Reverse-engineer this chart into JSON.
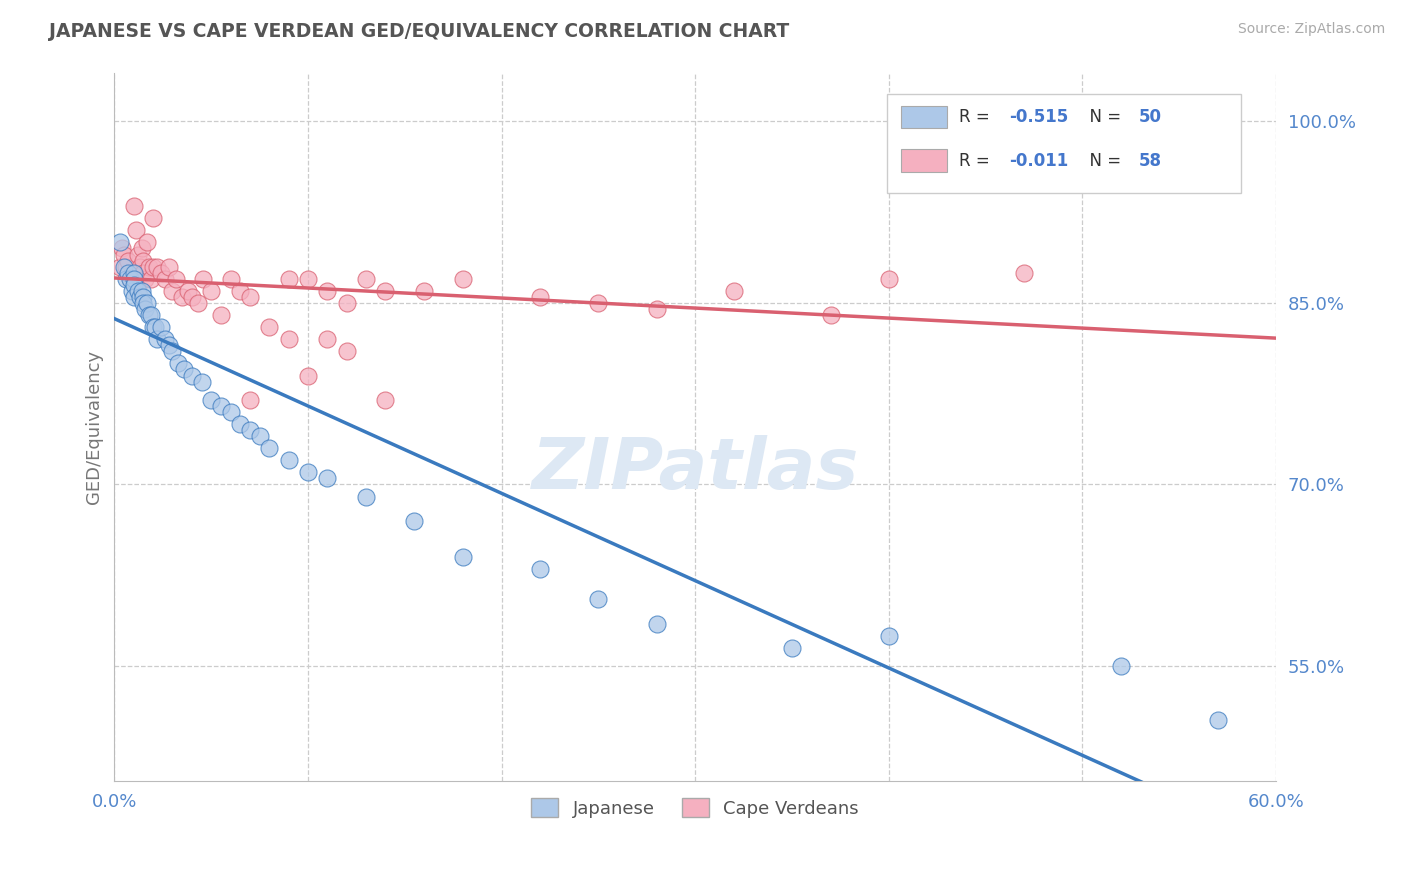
{
  "title": "JAPANESE VS CAPE VERDEAN GED/EQUIVALENCY CORRELATION CHART",
  "source_text": "Source: ZipAtlas.com",
  "ylabel": "GED/Equivalency",
  "legend_label1": "Japanese",
  "legend_label2": "Cape Verdeans",
  "r1": -0.515,
  "n1": 50,
  "r2": -0.011,
  "n2": 58,
  "xlim": [
    0.0,
    0.6
  ],
  "ylim": [
    0.455,
    1.04
  ],
  "yticks": [
    0.55,
    0.7,
    0.85,
    1.0
  ],
  "ytick_labels": [
    "55.0%",
    "70.0%",
    "85.0%",
    "100.0%"
  ],
  "xtick_labels": [
    "0.0%",
    "",
    "",
    "",
    "",
    "",
    "60.0%"
  ],
  "color_blue": "#adc8e8",
  "color_pink": "#f5b0c0",
  "line_blue": "#3a7abf",
  "line_pink": "#d96070",
  "title_color": "#555555",
  "axis_label_color": "#5588cc",
  "watermark": "ZIPatlas",
  "background_color": "#ffffff",
  "grid_color": "#cccccc",
  "japanese_x": [
    0.003,
    0.005,
    0.006,
    0.007,
    0.008,
    0.009,
    0.01,
    0.01,
    0.01,
    0.01,
    0.012,
    0.013,
    0.014,
    0.015,
    0.015,
    0.016,
    0.017,
    0.018,
    0.019,
    0.02,
    0.021,
    0.022,
    0.024,
    0.026,
    0.028,
    0.03,
    0.033,
    0.036,
    0.04,
    0.045,
    0.05,
    0.055,
    0.06,
    0.065,
    0.07,
    0.075,
    0.08,
    0.09,
    0.1,
    0.11,
    0.13,
    0.155,
    0.18,
    0.22,
    0.25,
    0.28,
    0.35,
    0.4,
    0.52,
    0.57
  ],
  "japanese_y": [
    0.9,
    0.88,
    0.87,
    0.875,
    0.87,
    0.86,
    0.875,
    0.87,
    0.865,
    0.855,
    0.86,
    0.855,
    0.86,
    0.855,
    0.85,
    0.845,
    0.85,
    0.84,
    0.84,
    0.83,
    0.83,
    0.82,
    0.83,
    0.82,
    0.815,
    0.81,
    0.8,
    0.795,
    0.79,
    0.785,
    0.77,
    0.765,
    0.76,
    0.75,
    0.745,
    0.74,
    0.73,
    0.72,
    0.71,
    0.705,
    0.69,
    0.67,
    0.64,
    0.63,
    0.605,
    0.585,
    0.565,
    0.575,
    0.55,
    0.505
  ],
  "capeverdean_x": [
    0.003,
    0.004,
    0.005,
    0.006,
    0.007,
    0.008,
    0.009,
    0.01,
    0.011,
    0.012,
    0.013,
    0.014,
    0.015,
    0.015,
    0.016,
    0.017,
    0.018,
    0.019,
    0.02,
    0.02,
    0.022,
    0.024,
    0.026,
    0.028,
    0.03,
    0.032,
    0.035,
    0.038,
    0.04,
    0.043,
    0.046,
    0.05,
    0.055,
    0.06,
    0.065,
    0.07,
    0.08,
    0.09,
    0.1,
    0.11,
    0.12,
    0.13,
    0.14,
    0.16,
    0.18,
    0.22,
    0.25,
    0.28,
    0.32,
    0.37,
    0.07,
    0.09,
    0.1,
    0.11,
    0.12,
    0.14,
    0.4,
    0.47
  ],
  "capeverdean_y": [
    0.88,
    0.895,
    0.89,
    0.88,
    0.885,
    0.87,
    0.875,
    0.93,
    0.91,
    0.89,
    0.88,
    0.895,
    0.885,
    0.875,
    0.87,
    0.9,
    0.88,
    0.87,
    0.92,
    0.88,
    0.88,
    0.875,
    0.87,
    0.88,
    0.86,
    0.87,
    0.855,
    0.86,
    0.855,
    0.85,
    0.87,
    0.86,
    0.84,
    0.87,
    0.86,
    0.855,
    0.83,
    0.87,
    0.87,
    0.86,
    0.85,
    0.87,
    0.86,
    0.86,
    0.87,
    0.855,
    0.85,
    0.845,
    0.86,
    0.84,
    0.77,
    0.82,
    0.79,
    0.82,
    0.81,
    0.77,
    0.87,
    0.875
  ]
}
